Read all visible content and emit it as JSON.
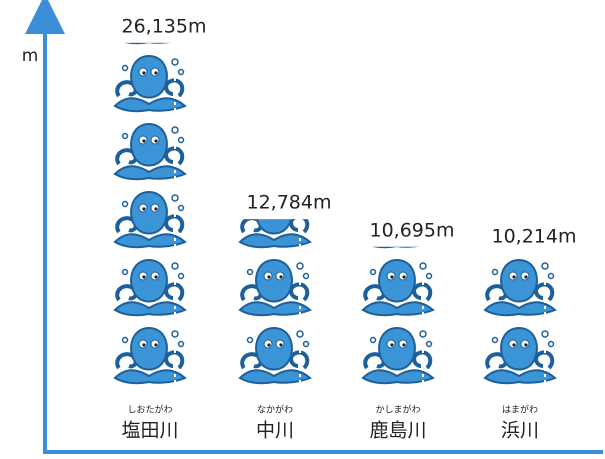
{
  "chart_data": {
    "type": "pictograph",
    "y_label": "m",
    "categories": [
      "塩田川",
      "中川",
      "鹿島川",
      "浜川"
    ],
    "category_readings": [
      "しおたがわ",
      "なかがわ",
      "かしまがわ",
      "はまがわ"
    ],
    "values": [
      26135,
      12784,
      10695,
      10214
    ],
    "value_labels": [
      "26,135m",
      "12,784m",
      "10,695m",
      "10,214m"
    ],
    "color": "#3b94d6",
    "ylim": [
      0,
      29000
    ]
  }
}
